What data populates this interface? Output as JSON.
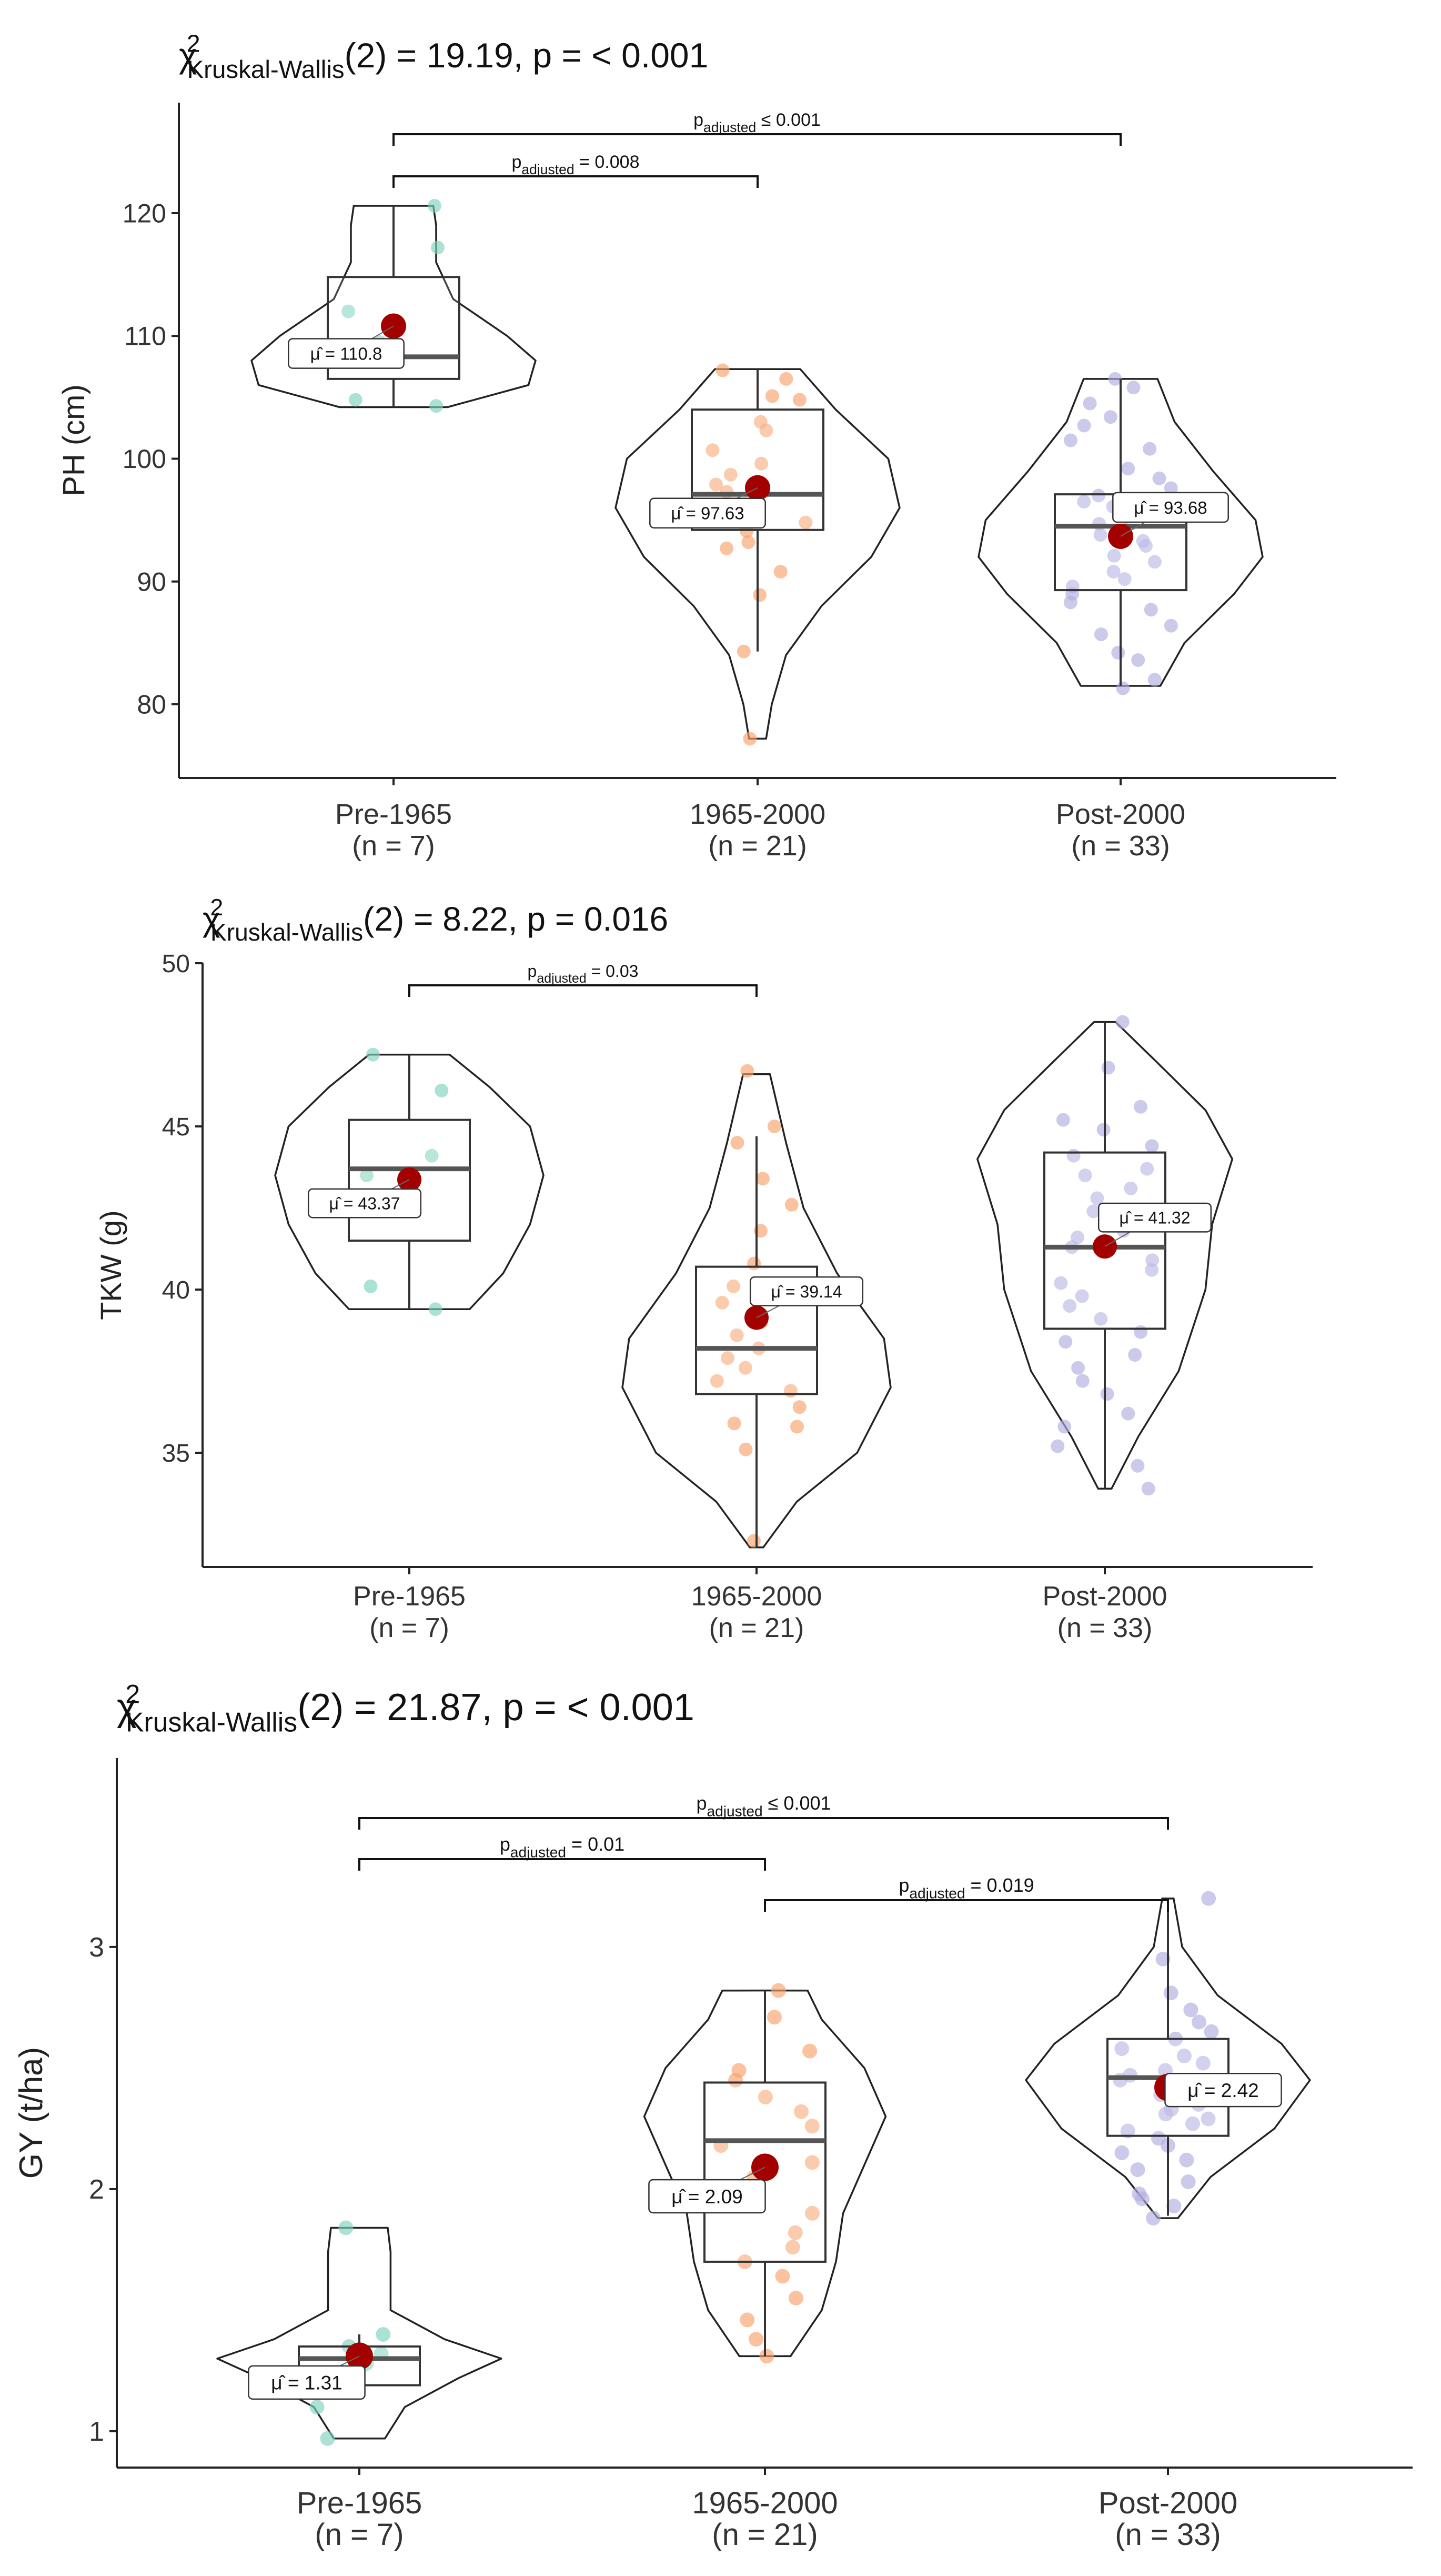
{
  "figure": {
    "groups": [
      "Pre-1965",
      "1965-2000",
      "Post-2000"
    ],
    "group_colors": [
      "#7fd2bf",
      "#f9a26c",
      "#b1aee0"
    ],
    "mean_color": "#a30000",
    "mean_symbol": "μ̂"
  },
  "chart_data": [
    {
      "type": "violin",
      "ylabel": "PH (cm)",
      "title_pre": "χ",
      "title_sup": "2",
      "title_sub": "Kruskal-Wallis",
      "title_post": "(2) = 19.19, p = < 0.001",
      "ylim": [
        74,
        129
      ],
      "yticks": [
        80,
        90,
        100,
        110,
        120
      ],
      "categories": [
        "Pre-1965",
        "1965-2000",
        "Post-2000"
      ],
      "n_labels": [
        "(n = 7)",
        "(n = 21)",
        "(n = 33)"
      ],
      "means": [
        110.8,
        97.63,
        93.68
      ],
      "mean_labels": [
        "μ̂ = 110.8",
        "μ̂ = 97.63",
        "μ̂ = 93.68"
      ],
      "boxes": [
        {
          "lower_whisker": 104.2,
          "q1": 106.5,
          "median": 108.3,
          "q3": 114.8,
          "upper_whisker": 120.6
        },
        {
          "lower_whisker": 84.3,
          "q1": 94.2,
          "median": 97.1,
          "q3": 104.0,
          "upper_whisker": 107.3
        },
        {
          "lower_whisker": 81.5,
          "q1": 89.3,
          "median": 94.5,
          "q3": 97.1,
          "upper_whisker": 106.5
        }
      ],
      "violins": [
        {
          "min": 104.2,
          "max": 120.6,
          "profile": [
            [
              104.2,
              0.38
            ],
            [
              106,
              0.95
            ],
            [
              108,
              1.0
            ],
            [
              110,
              0.8
            ],
            [
              113,
              0.42
            ],
            [
              116,
              0.3
            ],
            [
              119,
              0.3
            ],
            [
              120.6,
              0.28
            ]
          ]
        },
        {
          "min": 77.2,
          "max": 107.3,
          "profile": [
            [
              77.2,
              0.06
            ],
            [
              80,
              0.1
            ],
            [
              84,
              0.2
            ],
            [
              88,
              0.45
            ],
            [
              92,
              0.8
            ],
            [
              96,
              1.0
            ],
            [
              100,
              0.92
            ],
            [
              104,
              0.55
            ],
            [
              107.3,
              0.3
            ]
          ]
        },
        {
          "min": 81.5,
          "max": 106.5,
          "profile": [
            [
              81.5,
              0.28
            ],
            [
              85,
              0.45
            ],
            [
              89,
              0.8
            ],
            [
              92,
              1.0
            ],
            [
              95,
              0.95
            ],
            [
              99,
              0.65
            ],
            [
              103,
              0.38
            ],
            [
              106.5,
              0.26
            ]
          ]
        }
      ],
      "points": [
        [
          120.6,
          117.2,
          112.0,
          108.9,
          104.3,
          104.8,
          109.5
        ],
        [
          107.2,
          106.5,
          105.1,
          104.8,
          103.0,
          102.3,
          100.7,
          99.6,
          98.7,
          97.9,
          97.3,
          96.1,
          95.2,
          94.8,
          94.1,
          93.2,
          92.7,
          90.8,
          88.9,
          84.3,
          77.2
        ],
        [
          106.5,
          105.8,
          104.5,
          103.4,
          102.7,
          101.5,
          100.8,
          99.2,
          98.4,
          97.6,
          97.0,
          96.5,
          96.1,
          95.4,
          94.7,
          94.2,
          93.8,
          93.3,
          92.9,
          92.1,
          91.6,
          90.8,
          90.2,
          89.6,
          89.0,
          88.3,
          87.7,
          86.4,
          85.7,
          84.2,
          83.6,
          82.0,
          81.3
        ]
      ],
      "comparisons": [
        {
          "from": 0,
          "to": 2,
          "level": 1,
          "label_sub": "adjusted",
          "label_val": " ≤ 0.001"
        },
        {
          "from": 0,
          "to": 1,
          "level": 0,
          "label_sub": "adjusted",
          "label_val": " = 0.008"
        }
      ]
    },
    {
      "type": "violin",
      "ylabel": "TKW (g)",
      "title_pre": "χ",
      "title_sup": "2",
      "title_sub": "Kruskal-Wallis",
      "title_post": "(2) = 8.22, p = 0.016",
      "ylim": [
        31.5,
        50
      ],
      "yticks": [
        35,
        40,
        45,
        50
      ],
      "categories": [
        "Pre-1965",
        "1965-2000",
        "Post-2000"
      ],
      "n_labels": [
        "(n = 7)",
        "(n = 21)",
        "(n = 33)"
      ],
      "means": [
        43.37,
        39.14,
        41.32
      ],
      "mean_labels": [
        "μ̂ = 43.37",
        "μ̂ = 39.14",
        "μ̂ = 41.32"
      ],
      "boxes": [
        {
          "lower_whisker": 39.4,
          "q1": 41.5,
          "median": 43.7,
          "q3": 45.2,
          "upper_whisker": 47.2
        },
        {
          "lower_whisker": 32.1,
          "q1": 36.8,
          "median": 38.2,
          "q3": 40.7,
          "upper_whisker": 44.7
        },
        {
          "lower_whisker": 33.9,
          "q1": 38.8,
          "median": 41.3,
          "q3": 44.2,
          "upper_whisker": 48.2
        }
      ],
      "violins": [
        {
          "min": 39.4,
          "max": 47.2,
          "profile": [
            [
              39.4,
              0.45
            ],
            [
              40.5,
              0.7
            ],
            [
              42,
              0.9
            ],
            [
              43.5,
              1.0
            ],
            [
              45,
              0.9
            ],
            [
              46.2,
              0.6
            ],
            [
              47.2,
              0.3
            ]
          ]
        },
        {
          "min": 32.1,
          "max": 46.6,
          "profile": [
            [
              32.1,
              0.05
            ],
            [
              33.5,
              0.3
            ],
            [
              35,
              0.75
            ],
            [
              37,
              1.0
            ],
            [
              38.5,
              0.95
            ],
            [
              40.5,
              0.6
            ],
            [
              42.5,
              0.35
            ],
            [
              44.5,
              0.22
            ],
            [
              46.6,
              0.1
            ]
          ]
        },
        {
          "min": 33.9,
          "max": 48.2,
          "profile": [
            [
              33.9,
              0.05
            ],
            [
              35.5,
              0.25
            ],
            [
              37.5,
              0.55
            ],
            [
              40,
              0.75
            ],
            [
              42,
              0.8
            ],
            [
              44,
              0.95
            ],
            [
              45.5,
              0.75
            ],
            [
              47,
              0.38
            ],
            [
              48.2,
              0.08
            ]
          ]
        }
      ],
      "points": [
        [
          47.2,
          46.1,
          44.1,
          43.5,
          42.7,
          40.1,
          39.4
        ],
        [
          46.7,
          45.0,
          44.5,
          43.4,
          42.6,
          41.8,
          40.8,
          40.1,
          39.6,
          39.0,
          38.6,
          38.2,
          37.9,
          37.6,
          37.2,
          36.9,
          36.4,
          35.9,
          35.8,
          35.1,
          32.3
        ],
        [
          48.2,
          46.8,
          45.6,
          45.2,
          44.9,
          44.4,
          44.1,
          43.5,
          43.1,
          42.8,
          42.4,
          42.0,
          41.6,
          41.3,
          40.9,
          40.6,
          40.2,
          39.8,
          39.5,
          39.1,
          38.7,
          38.4,
          38.0,
          37.6,
          37.2,
          36.8,
          36.2,
          35.8,
          35.2,
          34.6,
          33.9,
          41.8,
          43.7
        ]
      ],
      "comparisons": [
        {
          "from": 0,
          "to": 1,
          "level": 0,
          "label_sub": "adjusted",
          "label_val": " = 0.03"
        }
      ]
    },
    {
      "type": "violin",
      "ylabel": "GY (t/ha)",
      "title_pre": "χ",
      "title_sup": "2",
      "title_sub": "Kruskal-Wallis",
      "title_post": "(2) = 21.87, p = < 0.001",
      "ylim": [
        0.85,
        3.78
      ],
      "yticks": [
        1,
        2,
        3
      ],
      "categories": [
        "Pre-1965",
        "1965-2000",
        "Post-2000"
      ],
      "n_labels": [
        "(n = 7)",
        "(n = 21)",
        "(n = 33)"
      ],
      "means": [
        1.31,
        2.09,
        2.42
      ],
      "mean_labels": [
        "μ̂ = 1.31",
        "μ̂ = 2.09",
        "μ̂ = 2.42"
      ],
      "boxes": [
        {
          "lower_whisker": 1.19,
          "q1": 1.19,
          "median": 1.3,
          "q3": 1.35,
          "upper_whisker": 1.4
        },
        {
          "lower_whisker": 1.31,
          "q1": 1.7,
          "median": 2.2,
          "q3": 2.44,
          "upper_whisker": 2.82
        },
        {
          "lower_whisker": 1.89,
          "q1": 2.22,
          "median": 2.46,
          "q3": 2.62,
          "upper_whisker": 3.2
        }
      ],
      "violins": [
        {
          "min": 0.97,
          "max": 1.84,
          "profile": [
            [
              0.97,
              0.18
            ],
            [
              1.1,
              0.32
            ],
            [
              1.22,
              0.7
            ],
            [
              1.3,
              1.0
            ],
            [
              1.38,
              0.6
            ],
            [
              1.5,
              0.22
            ],
            [
              1.62,
              0.22
            ],
            [
              1.74,
              0.22
            ],
            [
              1.84,
              0.2
            ]
          ]
        },
        {
          "min": 1.31,
          "max": 2.82,
          "profile": [
            [
              1.31,
              0.18
            ],
            [
              1.5,
              0.4
            ],
            [
              1.7,
              0.5
            ],
            [
              1.9,
              0.55
            ],
            [
              2.1,
              0.7
            ],
            [
              2.3,
              0.85
            ],
            [
              2.5,
              0.7
            ],
            [
              2.7,
              0.4
            ],
            [
              2.82,
              0.3
            ]
          ]
        },
        {
          "min": 1.88,
          "max": 3.2,
          "profile": [
            [
              1.88,
              0.07
            ],
            [
              2.05,
              0.3
            ],
            [
              2.25,
              0.75
            ],
            [
              2.45,
              1.0
            ],
            [
              2.6,
              0.8
            ],
            [
              2.8,
              0.35
            ],
            [
              3.0,
              0.1
            ],
            [
              3.2,
              0.04
            ]
          ]
        }
      ],
      "points": [
        [
          1.84,
          1.4,
          1.35,
          1.32,
          1.28,
          1.1,
          0.97
        ],
        [
          2.82,
          2.71,
          2.57,
          2.49,
          2.45,
          2.38,
          2.32,
          2.26,
          2.18,
          2.11,
          2.05,
          1.97,
          1.9,
          1.82,
          1.76,
          1.7,
          1.64,
          1.55,
          1.46,
          1.38,
          1.31
        ],
        [
          3.2,
          2.95,
          2.81,
          2.74,
          2.69,
          2.65,
          2.62,
          2.58,
          2.55,
          2.52,
          2.49,
          2.47,
          2.45,
          2.43,
          2.41,
          2.39,
          2.37,
          2.35,
          2.33,
          2.31,
          2.29,
          2.27,
          2.24,
          2.21,
          2.18,
          2.15,
          2.12,
          2.08,
          2.03,
          1.98,
          1.96,
          1.93,
          1.88
        ]
      ],
      "comparisons": [
        {
          "from": 0,
          "to": 2,
          "level": 2,
          "label_sub": "adjusted",
          "label_val": " ≤ 0.001"
        },
        {
          "from": 0,
          "to": 1,
          "level": 1,
          "label_sub": "adjusted",
          "label_val": " = 0.01"
        },
        {
          "from": 1,
          "to": 2,
          "level": 0,
          "label_sub": "adjusted",
          "label_val": " = 0.019"
        }
      ]
    }
  ]
}
